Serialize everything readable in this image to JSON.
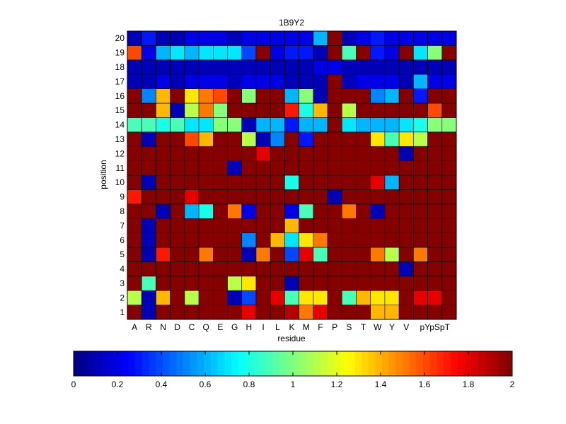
{
  "chart_data": {
    "type": "heatmap",
    "title": "1B9Y2",
    "xlabel": "residue",
    "ylabel": "position",
    "x_categories": [
      "A",
      "R",
      "N",
      "D",
      "C",
      "Q",
      "E",
      "G",
      "H",
      "I",
      "L",
      "K",
      "M",
      "F",
      "P",
      "S",
      "T",
      "W",
      "Y",
      "V",
      "pY",
      "pS",
      "pT"
    ],
    "x_tick_labels": [
      "A",
      "R",
      "N",
      "D",
      "C",
      "Q",
      "E",
      "G",
      "H",
      "I",
      "L",
      "K",
      "M",
      "F",
      "P",
      "S",
      "T",
      "W",
      "Y",
      "V",
      "pYpSpT"
    ],
    "y_categories": [
      1,
      2,
      3,
      4,
      5,
      6,
      7,
      8,
      9,
      10,
      11,
      12,
      13,
      14,
      15,
      16,
      17,
      18,
      19,
      20
    ],
    "y_tick_labels": [
      "1",
      "2",
      "3",
      "4",
      "5",
      "6",
      "7",
      "8",
      "9",
      "10",
      "11",
      "12",
      "13",
      "14",
      "15",
      "16",
      "17",
      "18",
      "19",
      "20"
    ],
    "clim": [
      0,
      2
    ],
    "colormap": "jet",
    "colorbar": {
      "orientation": "horizontal",
      "ticks": [
        0,
        0.2,
        0.4,
        0.6,
        0.8,
        1,
        1.2,
        1.4,
        1.6,
        1.8,
        2
      ],
      "tick_labels": [
        "0",
        "0.2",
        "0.4",
        "0.6",
        "0.8",
        "1",
        "1.2",
        "1.4",
        "1.6",
        "1.8",
        "2"
      ],
      "levels": 64
    },
    "values": [
      [
        2,
        0.1,
        2,
        2,
        2,
        2,
        2,
        2,
        1.8,
        2,
        2,
        1.9,
        1.5,
        1.8,
        2,
        2,
        2,
        1.4,
        1.4,
        2,
        2,
        2,
        2
      ],
      [
        1.1,
        0.1,
        1.4,
        2,
        1.1,
        2,
        2,
        0.1,
        0.4,
        2,
        1.8,
        0.9,
        1.3,
        1.3,
        2,
        0.9,
        1.4,
        1.3,
        1.3,
        2,
        1.8,
        1.8,
        2
      ],
      [
        2,
        0.9,
        2,
        2,
        2,
        2,
        2,
        1.1,
        1.3,
        2,
        2,
        0.1,
        2,
        2,
        2,
        2,
        2,
        2,
        2,
        2,
        2,
        2,
        2
      ],
      [
        2,
        2,
        2,
        2,
        2,
        2,
        2,
        2,
        2,
        2,
        2,
        2,
        2,
        2,
        2,
        2,
        2,
        2,
        2,
        0.1,
        2,
        2,
        2
      ],
      [
        2,
        0.1,
        1.7,
        2,
        2,
        1.5,
        2,
        2,
        0.1,
        1.5,
        2,
        0.4,
        1.8,
        0.9,
        2,
        2,
        2,
        1.5,
        1.1,
        2,
        1.5,
        2,
        2
      ],
      [
        2,
        0.1,
        2,
        2,
        2,
        2,
        2,
        2,
        0.5,
        2,
        1.4,
        0.7,
        1.3,
        1.5,
        2,
        2,
        2,
        2,
        2,
        2,
        2,
        2,
        2
      ],
      [
        2,
        0.1,
        2,
        2,
        2,
        2,
        2,
        2,
        2,
        2,
        2,
        1.4,
        2,
        2,
        2,
        2,
        2,
        2,
        2,
        2,
        2,
        2,
        2
      ],
      [
        2,
        2,
        0.1,
        2,
        0.6,
        0.8,
        2,
        1.5,
        0.2,
        2,
        2,
        0.2,
        0.9,
        2,
        2,
        1.5,
        2,
        0.1,
        2,
        2,
        2,
        2,
        2
      ],
      [
        1.7,
        2,
        2,
        2,
        1.8,
        2,
        2,
        2,
        2,
        2,
        2,
        2,
        2,
        2,
        0.1,
        2,
        2,
        2,
        2,
        2,
        2,
        2,
        2
      ],
      [
        2,
        0.1,
        2,
        2,
        2,
        2,
        2,
        2,
        2,
        2,
        2,
        0.8,
        2,
        2,
        2,
        2,
        2,
        1.8,
        0.6,
        2,
        2,
        2,
        2
      ],
      [
        2,
        2,
        2,
        2,
        2,
        2,
        2,
        0.1,
        2,
        2,
        2,
        2,
        2,
        2,
        2,
        2,
        2,
        2,
        2,
        2,
        2,
        2,
        2
      ],
      [
        2,
        2,
        2,
        2,
        2,
        2,
        2,
        2,
        2,
        1.8,
        2,
        2,
        2,
        2,
        2,
        2,
        2,
        2,
        2,
        0.1,
        2,
        2,
        2
      ],
      [
        2,
        0.1,
        2,
        2,
        1.6,
        1.4,
        2,
        2,
        1.1,
        0.1,
        0.5,
        2,
        0.3,
        2,
        2,
        2,
        2,
        1.3,
        0.9,
        1.3,
        1.1,
        2,
        2
      ],
      [
        0.9,
        0.9,
        0.8,
        0.9,
        0.7,
        0.7,
        1,
        1,
        0.1,
        0.6,
        0.6,
        0.3,
        0.6,
        0.6,
        2,
        0.7,
        0.6,
        0.6,
        0.6,
        0.7,
        0.8,
        1,
        1
      ],
      [
        2,
        2,
        1.4,
        0.1,
        1.1,
        1.5,
        1,
        2,
        2,
        2,
        2,
        1.7,
        0.8,
        1.4,
        2,
        1.1,
        2,
        2,
        2,
        2,
        2,
        1.6,
        2
      ],
      [
        2,
        0.5,
        1.4,
        2,
        1.3,
        1.5,
        1.6,
        2,
        1,
        2,
        2,
        0.6,
        1,
        0.1,
        2,
        2,
        2,
        0.5,
        0.6,
        2,
        0.3,
        2,
        2
      ],
      [
        0.1,
        0.1,
        0.2,
        0.1,
        0.2,
        0.2,
        0.2,
        0.1,
        0.2,
        0.2,
        0.2,
        0.1,
        0.1,
        0.1,
        2,
        0.1,
        0.2,
        0.2,
        0.2,
        0.1,
        0.6,
        0.2,
        0.2
      ],
      [
        0.1,
        0.1,
        0.1,
        0.1,
        0.1,
        0.1,
        0.1,
        0.1,
        0.1,
        0.1,
        0.1,
        0.1,
        0.1,
        0.2,
        0.2,
        0.1,
        0.1,
        0.1,
        0.1,
        0.1,
        0.1,
        0.1,
        0.1
      ],
      [
        1.6,
        0.2,
        0.6,
        0.7,
        0.6,
        0.7,
        0.7,
        0.7,
        0.4,
        2,
        0.2,
        0.3,
        0.3,
        0.1,
        2,
        0.9,
        2,
        0.3,
        0.2,
        2,
        0.7,
        1,
        2
      ],
      [
        0.1,
        0.3,
        0.1,
        0.1,
        0.2,
        0.2,
        0.2,
        0.1,
        0.2,
        0.2,
        0.2,
        0.2,
        0.2,
        0.6,
        2,
        0.1,
        0.2,
        0.3,
        0.2,
        0.2,
        0.2,
        0.2,
        0.2
      ]
    ]
  }
}
